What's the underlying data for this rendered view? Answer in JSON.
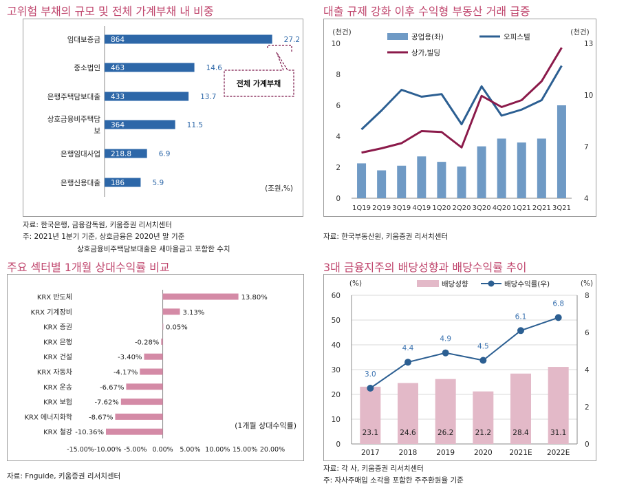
{
  "panels": [
    {
      "title": "고위험 부채의 규모 및 전체 가계부채 내 비중",
      "notes": [
        "자료: 한국은행, 금융감독원, 키움증권 리서치센터",
        "주: 2021년 1분기 기준, 상호금융은 2020년 말 기준",
        "상호금융비주택담보대출은 새마을금고 포함한 수치"
      ]
    },
    {
      "title": "대출 규제 강화 이후 수익형 부동산 거래 급증",
      "notes": [
        "자료: 한국부동산원, 키움증권 리서치센터"
      ]
    },
    {
      "title": "주요 섹터별 1개월 상대수익률 비교",
      "notes": [
        "자료: Fnguide, 키움증권 리서치센터"
      ]
    },
    {
      "title": "3대 금융지주의 배당성향과 배당수익률 추이",
      "notes": [
        "자료: 각 사, 키움증권 리서치센터",
        "주: 자사주매입 소각을 포함한 주주환원율 기준"
      ]
    }
  ],
  "chart_data": [
    {
      "type": "bar",
      "orientation": "horizontal",
      "categories": [
        "임대보증금",
        "중소법인",
        "은행주택담보대출",
        "상호금융비주택담보대출",
        "은행임대사업",
        "은행신용대출"
      ],
      "category_lines": [
        [
          "임대보증금"
        ],
        [
          "중소법인"
        ],
        [
          "은행주택담보대출"
        ],
        [
          "상호금융비주택담",
          "보"
        ],
        [
          "은행임대사업"
        ],
        [
          "은행신용대출"
        ]
      ],
      "values": [
        864,
        463,
        433,
        364,
        218.8,
        186
      ],
      "value_labels": [
        "864",
        "463",
        "433",
        "364",
        "218.8",
        "186"
      ],
      "shares": [
        "27.2",
        "14.6",
        "13.7",
        "11.5",
        "6.9",
        "5.9"
      ],
      "callout": "전체 가계부채",
      "unit_label": "(조원,%)",
      "xlim": [
        0,
        1000
      ],
      "colors": {
        "bar": "#2d67a8",
        "share_text": "#2d67a8",
        "callout": "#7a1448"
      }
    },
    {
      "type": "bar+line",
      "categories": [
        "1Q19",
        "2Q19",
        "3Q19",
        "4Q19",
        "1Q20",
        "2Q20",
        "3Q20",
        "4Q20",
        "1Q21",
        "2Q21",
        "3Q21"
      ],
      "series": [
        {
          "name": "공업용(좌)",
          "kind": "bar",
          "axis": "left",
          "values": [
            2.25,
            1.8,
            2.1,
            2.7,
            2.35,
            2.05,
            3.35,
            3.85,
            3.6,
            3.85,
            6.0
          ],
          "color": "#6f9ac5"
        },
        {
          "name": "오피스텔",
          "kind": "line",
          "axis": "right",
          "values": [
            8.0,
            9.1,
            10.3,
            9.9,
            10.05,
            8.3,
            10.5,
            8.8,
            9.15,
            9.7,
            11.7
          ],
          "color": "#2c5f92"
        },
        {
          "name": "상가,빌딩",
          "kind": "line",
          "axis": "right",
          "values": [
            6.65,
            6.9,
            7.2,
            7.9,
            7.85,
            6.95,
            9.95,
            9.3,
            9.7,
            10.8,
            12.75
          ],
          "color": "#8b1a4a"
        }
      ],
      "left_axis": {
        "label": "(천건)",
        "ylim": [
          0,
          10
        ],
        "ticks": [
          0,
          2,
          4,
          6,
          8,
          10
        ]
      },
      "right_axis": {
        "label": "(천건)",
        "ylim": [
          4,
          13
        ],
        "ticks": [
          4,
          7,
          10,
          13
        ]
      }
    },
    {
      "type": "bar",
      "orientation": "horizontal",
      "categories": [
        "KRX 반도체",
        "KRX 기계장비",
        "KRX 증권",
        "KRX 은행",
        "KRX 건설",
        "KRX 자동차",
        "KRX 운송",
        "KRX 보험",
        "KRX 에너지화학",
        "KRX 철강"
      ],
      "values": [
        13.8,
        3.13,
        0.05,
        -0.28,
        -3.4,
        -4.17,
        -6.67,
        -7.62,
        -8.67,
        -10.36
      ],
      "value_labels": [
        "13.80%",
        "3.13%",
        "0.05%",
        "-0.28%",
        "-3.40%",
        "-4.17%",
        "-6.67%",
        "-7.62%",
        "-8.67%",
        "-10.36%"
      ],
      "tick_labels": [
        "-15.00%",
        "-10.00%",
        "-5.00%",
        "0.00%",
        "5.00%",
        "10.00%",
        "15.00%",
        "20.00%"
      ],
      "xlim": [
        -15,
        20
      ],
      "unit_label": "(1개월 상대수익률)",
      "colors": {
        "bar": "#d48aa6"
      }
    },
    {
      "type": "bar+line",
      "categories": [
        "2017",
        "2018",
        "2019",
        "2020",
        "2021E",
        "2022E"
      ],
      "series": [
        {
          "name": "배당성향",
          "kind": "bar",
          "axis": "left",
          "values": [
            23.1,
            24.6,
            26.2,
            21.2,
            28.4,
            31.1
          ],
          "labels": [
            "23.1",
            "24.6",
            "26.2",
            "21.2",
            "28.4",
            "31.1"
          ],
          "color": "#e3b9c8"
        },
        {
          "name": "배당수익률(우)",
          "kind": "line",
          "axis": "right",
          "values": [
            3.0,
            4.4,
            4.9,
            4.5,
            6.1,
            6.8
          ],
          "labels": [
            "3.0",
            "4.4",
            "4.9",
            "4.5",
            "6.1",
            "6.8"
          ],
          "color": "#2c5f92"
        }
      ],
      "left_axis": {
        "label": "(%)",
        "ylim": [
          0,
          60
        ],
        "ticks": [
          0,
          10,
          20,
          30,
          40,
          50,
          60
        ]
      },
      "right_axis": {
        "label": "(%)",
        "ylim": [
          0,
          8
        ],
        "ticks": [
          0,
          2,
          4,
          6,
          8
        ]
      },
      "grid": true
    }
  ]
}
